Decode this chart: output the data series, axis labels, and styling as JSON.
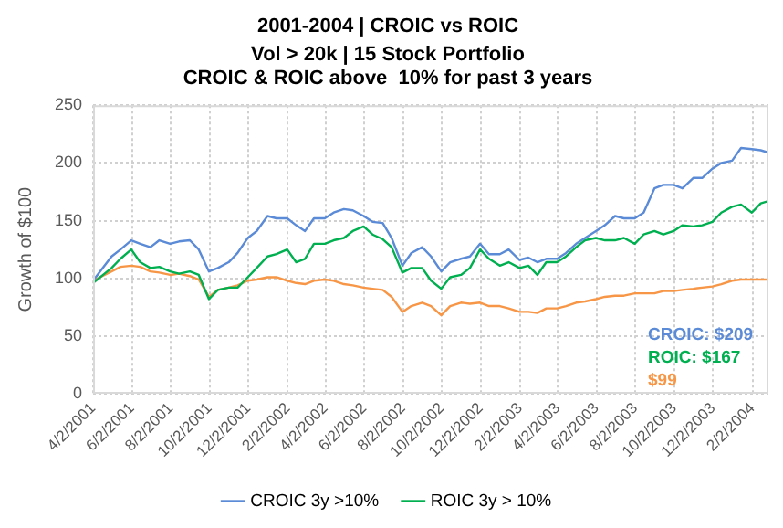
{
  "chart_data": {
    "type": "line",
    "title": "2001-2004 | CROIC vs ROIC",
    "subtitle": "Vol > 20k | 15 Stock Portfolio\nCROIC & ROIC above  10% for past 3 years",
    "ylabel": "Growth of $100",
    "x": [
      "2001-04-02",
      "2001-05-01",
      "2001-05-15",
      "2001-06-01",
      "2001-06-15",
      "2001-07-01",
      "2001-07-15",
      "2001-08-01",
      "2001-08-15",
      "2001-09-01",
      "2001-09-15",
      "2001-10-01",
      "2001-10-15",
      "2001-11-01",
      "2001-11-15",
      "2001-12-01",
      "2001-12-15",
      "2002-01-01",
      "2002-01-15",
      "2002-02-01",
      "2002-02-15",
      "2002-03-01",
      "2002-03-15",
      "2002-04-01",
      "2002-04-15",
      "2002-05-01",
      "2002-05-15",
      "2002-06-01",
      "2002-06-15",
      "2002-07-01",
      "2002-07-15",
      "2002-08-01",
      "2002-08-15",
      "2002-09-01",
      "2002-09-15",
      "2002-10-01",
      "2002-10-15",
      "2002-11-01",
      "2002-11-15",
      "2002-12-01",
      "2002-12-15",
      "2003-01-01",
      "2003-01-15",
      "2003-02-01",
      "2003-02-15",
      "2003-03-01",
      "2003-03-15",
      "2003-04-01",
      "2003-04-15",
      "2003-05-01",
      "2003-05-15",
      "2003-06-01",
      "2003-06-15",
      "2003-07-01",
      "2003-07-15",
      "2003-08-01",
      "2003-08-15",
      "2003-09-01",
      "2003-09-15",
      "2003-10-01",
      "2003-10-15",
      "2003-11-01",
      "2003-11-15",
      "2003-12-01",
      "2003-12-15",
      "2004-01-01",
      "2004-01-15",
      "2004-02-01",
      "2004-02-15",
      "2004-02-27"
    ],
    "series": [
      {
        "name": "CROIC 3y >10%",
        "color": "#5b8bd6",
        "values": [
          98,
          119,
          125,
          133,
          130,
          127,
          133,
          130,
          132,
          133,
          125,
          106,
          109,
          114,
          122,
          135,
          141,
          154,
          152,
          152,
          146,
          141,
          152,
          152,
          157,
          160,
          159,
          154,
          149,
          148,
          135,
          111,
          122,
          127,
          119,
          106,
          114,
          117,
          119,
          130,
          121,
          121,
          125,
          116,
          118,
          114,
          117,
          117,
          122,
          130,
          135,
          141,
          146,
          154,
          152,
          152,
          157,
          178,
          181,
          181,
          178,
          187,
          187,
          195,
          200,
          202,
          213,
          212,
          211,
          209
        ]
      },
      {
        "name": "ROIC 3y > 10%",
        "color": "#00b050",
        "values": [
          96,
          109,
          117,
          125,
          114,
          109,
          110,
          106,
          104,
          106,
          103,
          82,
          90,
          92,
          92,
          101,
          109,
          119,
          121,
          125,
          114,
          117,
          130,
          130,
          133,
          135,
          141,
          145,
          138,
          134,
          127,
          105,
          109,
          109,
          98,
          91,
          101,
          103,
          109,
          125,
          117,
          111,
          114,
          109,
          111,
          103,
          114,
          114,
          119,
          127,
          133,
          135,
          133,
          133,
          135,
          130,
          138,
          141,
          138,
          141,
          146,
          145,
          146,
          149,
          157,
          162,
          164,
          157,
          165,
          167
        ]
      },
      {
        "color": "#f79646",
        "values": [
          98,
          106,
          110,
          111,
          110,
          106,
          105,
          103,
          104,
          102,
          99,
          84,
          90,
          92,
          94,
          98,
          99,
          101,
          101,
          98,
          96,
          95,
          98,
          99,
          98,
          95,
          94,
          92,
          91,
          90,
          84,
          71,
          76,
          79,
          76,
          68,
          76,
          79,
          78,
          79,
          76,
          76,
          74,
          71,
          71,
          70,
          74,
          74,
          76,
          79,
          80,
          82,
          84,
          85,
          85,
          87,
          87,
          87,
          89,
          89,
          90,
          91,
          92,
          93,
          95,
          98,
          99,
          99,
          99,
          99
        ]
      }
    ],
    "annotations": [
      "CROIC: $209",
      "ROIC: $167",
      "$99"
    ],
    "xlim": [
      "2001-04-02",
      "2004-02-27"
    ],
    "xticks": [
      {
        "value": "2001-04-02",
        "label": "4/2/2001"
      },
      {
        "value": "2001-06-02",
        "label": "6/2/2001"
      },
      {
        "value": "2001-08-02",
        "label": "8/2/2001"
      },
      {
        "value": "2001-10-02",
        "label": "10/2/2001"
      },
      {
        "value": "2001-12-02",
        "label": "12/2/2001"
      },
      {
        "value": "2002-02-02",
        "label": "2/2/2002"
      },
      {
        "value": "2002-04-02",
        "label": "4/2/2002"
      },
      {
        "value": "2002-06-02",
        "label": "6/2/2002"
      },
      {
        "value": "2002-08-02",
        "label": "8/2/2002"
      },
      {
        "value": "2002-10-02",
        "label": "10/2/2002"
      },
      {
        "value": "2002-12-02",
        "label": "12/2/2002"
      },
      {
        "value": "2003-02-02",
        "label": "2/2/2003"
      },
      {
        "value": "2003-04-02",
        "label": "4/2/2003"
      },
      {
        "value": "2003-06-02",
        "label": "6/2/2003"
      },
      {
        "value": "2003-08-02",
        "label": "8/2/2003"
      },
      {
        "value": "2003-10-02",
        "label": "10/2/2003"
      },
      {
        "value": "2003-12-02",
        "label": "12/2/2003"
      },
      {
        "value": "2004-02-02",
        "label": "2/2/2004"
      }
    ],
    "ylim": [
      0,
      250
    ],
    "yticks": [
      0,
      50,
      100,
      150,
      200,
      250
    ],
    "grid": true,
    "legend": "bottom",
    "marker": "none",
    "line_style": "solid"
  }
}
